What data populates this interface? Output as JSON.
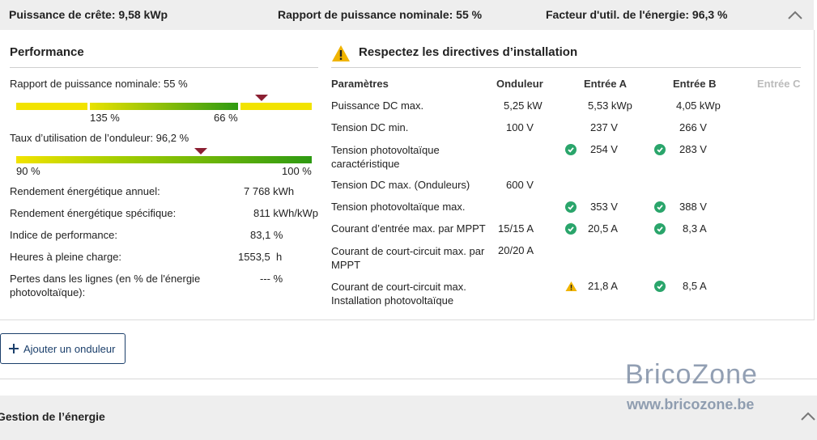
{
  "header": {
    "peak_power": "Puissance de crête: 9,58 kWp",
    "nominal_ratio": "Rapport de puissance nominale: 55 %",
    "energy_factor": "Facteur d'util. de l'énergie: 96,3 %"
  },
  "performance": {
    "title": "Performance",
    "nominal_ratio_label": "Rapport de puissance nominale: 55 %",
    "nominal_ratio_value": 0.55,
    "nominal_ticks": [
      "135 %",
      "66 %"
    ],
    "inverter_usage_label": "Taux d’utilisation de l’onduleur: 96,2 %",
    "inverter_usage_value": 0.962,
    "inverter_ticks": [
      "90 %",
      "100 %"
    ],
    "rows": [
      {
        "label": "Rendement énergétique annuel:",
        "value": "7 768 kWh"
      },
      {
        "label": "Rendement énergétique spécifique:",
        "value": "811 kWh/kWp"
      },
      {
        "label": "Indice de performance:",
        "value": "83,1 %"
      },
      {
        "label": "Heures à pleine charge:",
        "value": "1553,5  h"
      },
      {
        "label": "Pertes dans les lignes (en % de l'énergie photovoltaïque):",
        "value": "--- %"
      }
    ]
  },
  "guidelines": {
    "title": "Respectez les directives d’installation",
    "headers": [
      "Paramètres",
      "Onduleur",
      "Entrée A",
      "Entrée B",
      "Entrée C"
    ],
    "rows": [
      {
        "param": "Puissance DC max.",
        "inverter": "5,25 kW",
        "a": "5,53 kWp",
        "b": "4,05 kWp"
      },
      {
        "param": "Tension DC min.",
        "inverter": "100 V",
        "a": "237 V",
        "b": "266 V"
      },
      {
        "param": "Tension photovoltaïque caractéristique",
        "inverter": "",
        "a": "254 V",
        "b": "283 V",
        "a_status": "ok",
        "b_status": "ok"
      },
      {
        "param": "Tension DC max. (Onduleurs)",
        "inverter": "600 V",
        "a": "",
        "b": ""
      },
      {
        "param": "Tension photovoltaïque max.",
        "inverter": "",
        "a": "353 V",
        "b": "388 V",
        "a_status": "ok",
        "b_status": "ok"
      },
      {
        "param": "Courant d’entrée max. par MPPT",
        "inverter": "15/15 A",
        "a": "20,5 A",
        "b": "8,3 A",
        "a_status": "ok",
        "b_status": "ok"
      },
      {
        "param": "Courant de court-circuit max. par MPPT",
        "inverter": "20/20 A",
        "a": "",
        "b": ""
      },
      {
        "param": "Courant de court-circuit max. Installation photovoltaïque",
        "inverter": "",
        "a": "21,8 A",
        "b": "8,5 A",
        "a_status": "warning",
        "b_status": "ok"
      }
    ]
  },
  "actions": {
    "add_inverter": "Ajouter un onduleur"
  },
  "energy_management": {
    "title": "Gestion de l’énergie"
  },
  "watermark": {
    "line1": "BricoZone",
    "line2": "www.bricozone.be"
  },
  "colors": {
    "accent": "#1b3f6b",
    "ok": "#2aa56b",
    "warning": "#f0b400",
    "marker": "#8b1f32"
  }
}
